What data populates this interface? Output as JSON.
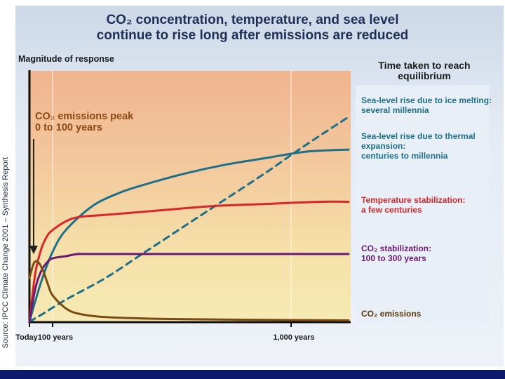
{
  "source_note": "Source: IPCC Climate Change 2001 – Synthesis Report",
  "chart_data": {
    "type": "line",
    "title_line1": "CO₂ concentration, temperature, and sea level",
    "title_line2": "continue to rise long after emissions are reduced",
    "ylabel": "Magnitude of response",
    "xlabel": "",
    "x_tick_labels": [
      "Today",
      "100 years",
      "1,000 years"
    ],
    "x_tick_values": [
      0,
      100,
      1000
    ],
    "xlim": [
      0,
      1200
    ],
    "ylim": [
      0,
      1
    ],
    "legend_title": "Time taken to reach equilibrium",
    "annotation": {
      "line1": "CO₂ emissions peak",
      "line2": "0 to 100 years"
    },
    "series": [
      {
        "key": "sea_ice",
        "label_line1": "Sea-level rise due to ice melting:",
        "label_line2": "several millennia",
        "label_line3": "",
        "color": "#1d6f8a",
        "dashed": true,
        "x": [
          0,
          50,
          150,
          300,
          450,
          600,
          750,
          900,
          1050,
          1200
        ],
        "y": [
          0.0,
          0.03,
          0.1,
          0.2,
          0.32,
          0.44,
          0.56,
          0.68,
          0.81,
          0.94
        ]
      },
      {
        "key": "sea_thermal",
        "label_line1": "Sea-level rise due to thermal",
        "label_line2": "expansion:",
        "label_line3": "centuries to millennia",
        "color": "#1d6f8a",
        "dashed": false,
        "x": [
          0,
          50,
          100,
          150,
          250,
          350,
          450,
          600,
          750,
          900,
          1050,
          1200
        ],
        "y": [
          0.0,
          0.18,
          0.32,
          0.42,
          0.53,
          0.59,
          0.63,
          0.68,
          0.72,
          0.75,
          0.78,
          0.79
        ]
      },
      {
        "key": "temperature",
        "label_line1": "Temperature stabilization:",
        "label_line2": "a few centuries",
        "label_line3": "",
        "color": "#d8262a",
        "dashed": false,
        "x": [
          0,
          25,
          50,
          75,
          100,
          150,
          200,
          300,
          500,
          700,
          900,
          1100,
          1200
        ],
        "y": [
          0.0,
          0.22,
          0.33,
          0.39,
          0.42,
          0.46,
          0.48,
          0.49,
          0.51,
          0.53,
          0.54,
          0.55,
          0.55
        ]
      },
      {
        "key": "co2_conc",
        "label_line1": "CO₂ stabilization:",
        "label_line2": "100 to 300 years",
        "label_line3": "",
        "color": "#6b1a76",
        "dashed": false,
        "x": [
          0,
          25,
          50,
          75,
          100,
          150,
          200,
          300,
          1200
        ],
        "y": [
          0.0,
          0.15,
          0.23,
          0.27,
          0.29,
          0.3,
          0.31,
          0.31,
          0.31
        ]
      },
      {
        "key": "co2_emissions",
        "label_line1": "CO₂ emissions",
        "label_line2": "",
        "label_line3": "",
        "color": "#7a4b12",
        "dashed": false,
        "x": [
          0,
          20,
          40,
          60,
          80,
          100,
          150,
          200,
          300,
          500,
          800,
          1200
        ],
        "y": [
          0.2,
          0.27,
          0.27,
          0.23,
          0.17,
          0.12,
          0.06,
          0.035,
          0.02,
          0.012,
          0.008,
          0.005
        ]
      }
    ]
  }
}
